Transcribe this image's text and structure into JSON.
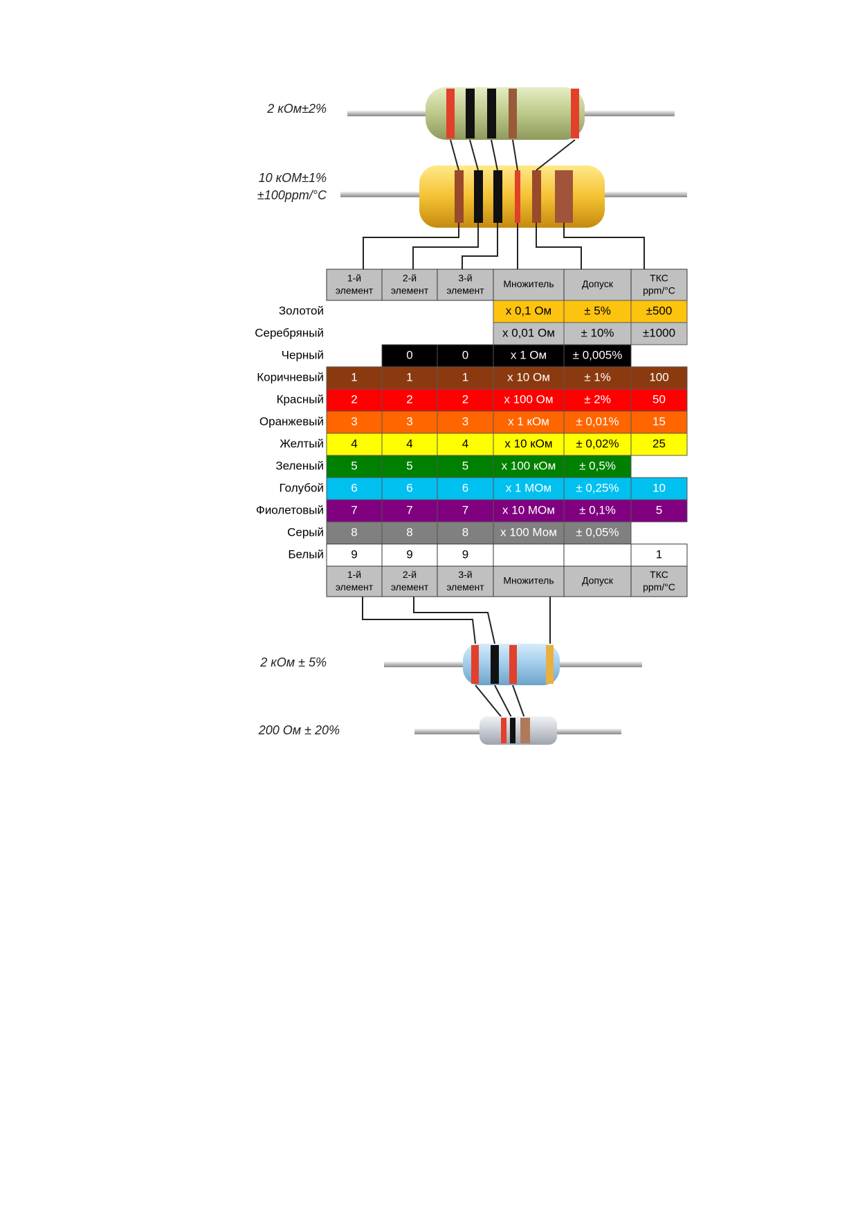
{
  "resistors_top": [
    {
      "lines": [
        "2 кОм±2%"
      ]
    },
    {
      "lines": [
        "10 кОМ±1%",
        "±100ppm/°C"
      ]
    }
  ],
  "table": {
    "header": [
      "1-й элемент",
      "2-й элемент",
      "3-й элемент",
      "Множитель",
      "Допуск",
      "ТКС ppm/°C"
    ],
    "rows": [
      {
        "name": "Золотой",
        "cells": [
          null,
          null,
          null,
          "x 0,1  Ом",
          "± 5%",
          "±500"
        ]
      },
      {
        "name": "Серебряный",
        "cells": [
          null,
          null,
          null,
          "x 0,01  Ом",
          "± 10%",
          "±1000"
        ]
      },
      {
        "name": "Черный",
        "cells": [
          null,
          "0",
          "0",
          "x 1  Ом",
          "± 0,005%",
          null
        ]
      },
      {
        "name": "Коричневый",
        "cells": [
          "1",
          "1",
          "1",
          "x 10  Ом",
          "± 1%",
          "100"
        ]
      },
      {
        "name": "Красный",
        "cells": [
          "2",
          "2",
          "2",
          "x 100  Ом",
          "± 2%",
          "50"
        ]
      },
      {
        "name": "Оранжевый",
        "cells": [
          "3",
          "3",
          "3",
          "x 1  кОм",
          "± 0,01%",
          "15"
        ]
      },
      {
        "name": "Желтый",
        "cells": [
          "4",
          "4",
          "4",
          "x 10  кОм",
          "± 0,02%",
          "25"
        ]
      },
      {
        "name": "Зеленый",
        "cells": [
          "5",
          "5",
          "5",
          "x 100  кОм",
          "± 0,5%",
          null
        ]
      },
      {
        "name": "Голубой",
        "cells": [
          "6",
          "6",
          "6",
          "x 1  МОм",
          "± 0,25%",
          "10"
        ]
      },
      {
        "name": "Фиолетовый",
        "cells": [
          "7",
          "7",
          "7",
          "x 10  МОм",
          "± 0,1%",
          "5"
        ]
      },
      {
        "name": "Серый",
        "cells": [
          "8",
          "8",
          "8",
          "x 100  Мом",
          "± 0,05%",
          null
        ]
      },
      {
        "name": "Белый",
        "cells": [
          "9",
          "9",
          "9",
          null,
          null,
          "1"
        ]
      }
    ]
  },
  "resistors_bottom": [
    {
      "lines": [
        "2 кОм ± 5%"
      ]
    },
    {
      "lines": [
        "200 Ом ± 20%"
      ]
    }
  ]
}
